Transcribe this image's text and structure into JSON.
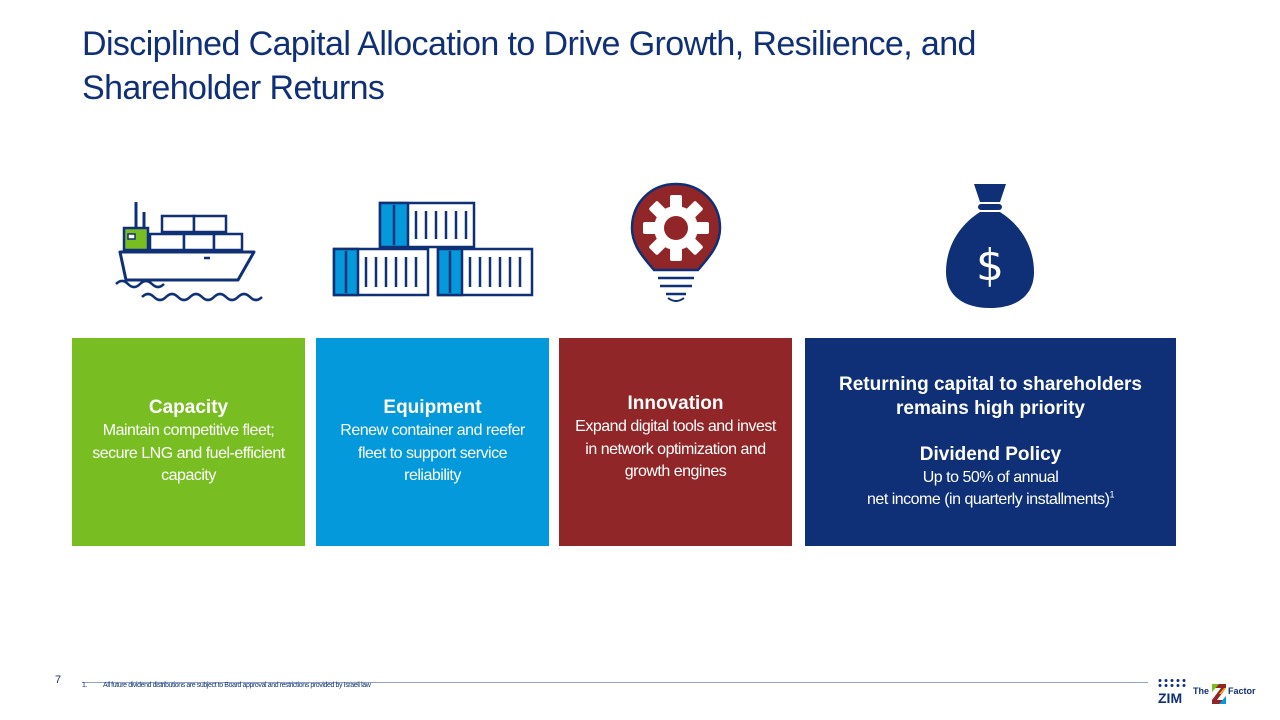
{
  "title": "Disciplined Capital Allocation to Drive Growth, Resilience, and Shareholder Returns",
  "pillars": [
    {
      "heading": "Capacity",
      "body": "Maintain competitive fleet; secure LNG and fuel-efficient capacity",
      "icon": "container-ship-icon",
      "color": "#78bd22"
    },
    {
      "heading": "Equipment",
      "body": "Renew container and reefer fleet to support service reliability",
      "icon": "shipping-containers-icon",
      "color": "#0399da"
    },
    {
      "heading": "Innovation",
      "body": "Expand digital tools and invest in network optimization and growth engines",
      "icon": "lightbulb-gear-icon",
      "color": "#902628"
    }
  ],
  "returns": {
    "heading": "Returning capital to shareholders remains high priority",
    "policy_heading": "Dividend Policy",
    "policy_line1": "Up to 50% of annual",
    "policy_line2": "net income (in quarterly installments)",
    "footnote_marker": "1",
    "icon": "money-bag-icon",
    "color": "#0f3076"
  },
  "footer": {
    "page_number": "7",
    "footnote_number": "1.",
    "footnote_text": "All future dividend distributions are subject to Board approval and restrictions provided by Israeli law",
    "logo_text": "ZIM",
    "tagline_the": "The",
    "tagline_factor": "Factor"
  }
}
